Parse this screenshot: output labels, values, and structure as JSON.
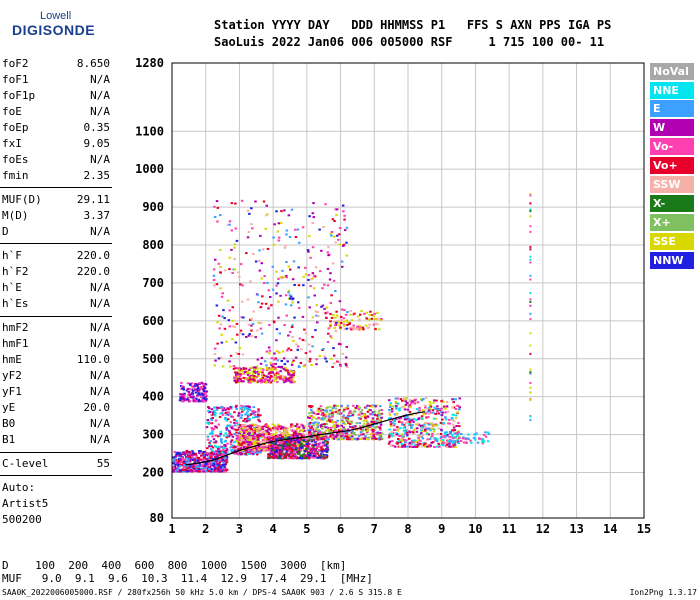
{
  "logo": {
    "line1": "Lowell",
    "line2": "DIGISONDE"
  },
  "header": {
    "row1": "Station YYYY DAY   DDD HHMMSS P1   FFS S AXN PPS IGA PS",
    "row2": "SaoLuis 2022 Jan06 006 005000 RSF     1 715 100 00- 11"
  },
  "params": [
    {
      "name": "foF2",
      "value": "8.650"
    },
    {
      "name": "foF1",
      "value": "N/A"
    },
    {
      "name": "foF1p",
      "value": "N/A"
    },
    {
      "name": "foE",
      "value": "N/A"
    },
    {
      "name": "foEp",
      "value": "0.35"
    },
    {
      "name": "fxI",
      "value": "9.05"
    },
    {
      "name": "foEs",
      "value": "N/A"
    },
    {
      "name": "fmin",
      "value": "2.35"
    },
    {
      "name": "MUF(D)",
      "value": "29.11"
    },
    {
      "name": "M(D)",
      "value": "3.37"
    },
    {
      "name": "D",
      "value": "N/A"
    },
    {
      "name": "h`F",
      "value": "220.0"
    },
    {
      "name": "h`F2",
      "value": "220.0"
    },
    {
      "name": "h`E",
      "value": "N/A"
    },
    {
      "name": "h`Es",
      "value": "N/A"
    },
    {
      "name": "hmF2",
      "value": "N/A"
    },
    {
      "name": "hmF1",
      "value": "N/A"
    },
    {
      "name": "hmE",
      "value": "110.0"
    },
    {
      "name": "yF2",
      "value": "N/A"
    },
    {
      "name": "yF1",
      "value": "N/A"
    },
    {
      "name": "yE",
      "value": "20.0"
    },
    {
      "name": "B0",
      "value": "N/A"
    },
    {
      "name": "B1",
      "value": "N/A"
    },
    {
      "name": "C-level",
      "value": "55"
    }
  ],
  "auto": [
    "Auto:",
    "Artist5",
    "500200"
  ],
  "legend": [
    {
      "label": "NoVal",
      "color": "#a8a8a8"
    },
    {
      "label": "NNE",
      "color": "#00e5ee"
    },
    {
      "label": "E",
      "color": "#3ca0ff"
    },
    {
      "label": "W",
      "color": "#b000b0"
    },
    {
      "label": "Vo-",
      "color": "#ff40b0"
    },
    {
      "label": "Vo+",
      "color": "#e8002a"
    },
    {
      "label": "SSW",
      "color": "#f5b0a8"
    },
    {
      "label": "X-",
      "color": "#1a7a1a"
    },
    {
      "label": "X+",
      "color": "#7fc060"
    },
    {
      "label": "SSE",
      "color": "#d8d800"
    },
    {
      "label": "NNW",
      "color": "#2020e0"
    }
  ],
  "footer": {
    "d_row": "D    100  200  400  600  800  1000  1500  3000  [km]",
    "muf_row": "MUF   9.0  9.1  9.6  10.3  11.4  12.9  17.4  29.1  [MHz]",
    "file": "SAA0K_2022006005000.RSF / 280fx256h 50 kHz 5.0 km / DPS-4 SAA0K 903 / 2.6 S 315.8 E",
    "version": "Ion2Png 1.3.17"
  },
  "chart_data": {
    "type": "scatter",
    "xlim": [
      1,
      15
    ],
    "ylim": [
      80,
      1280
    ],
    "x_ticks": [
      "1",
      "2",
      "3",
      "4",
      "5",
      "6",
      "7",
      "8",
      "9",
      "10",
      "11",
      "12",
      "13",
      "14",
      "15"
    ],
    "y_ticks": [
      "80",
      "200",
      "300",
      "400",
      "500",
      "600",
      "700",
      "800",
      "900",
      "1000",
      "1100",
      "1280"
    ],
    "grid": true,
    "profile_trace": {
      "x": [
        1.4,
        1.8,
        2.2,
        2.6,
        3.0,
        3.4,
        3.8,
        4.2,
        4.6,
        5.0,
        5.4,
        5.8,
        6.2,
        6.6,
        7.0,
        7.4,
        7.8,
        8.2,
        8.5
      ],
      "y": [
        220,
        225,
        232,
        245,
        258,
        268,
        278,
        285,
        290,
        294,
        300,
        305,
        310,
        318,
        328,
        338,
        348,
        356,
        360
      ]
    },
    "clusters": [
      {
        "x": [
          1.0,
          2.6
        ],
        "y": [
          205,
          260
        ],
        "n": 520,
        "colors": [
          "#b000b0",
          "#2020e0",
          "#ff40b0",
          "#e8002a",
          "#3ca0ff"
        ]
      },
      {
        "x": [
          1.2,
          2.0
        ],
        "y": [
          390,
          440
        ],
        "n": 140,
        "colors": [
          "#b000b0",
          "#2020e0",
          "#ff40b0"
        ]
      },
      {
        "x": [
          2.0,
          3.6
        ],
        "y": [
          250,
          380
        ],
        "n": 380,
        "colors": [
          "#b000b0",
          "#ff40b0",
          "#3ca0ff",
          "#e8002a",
          "#00e5ee"
        ]
      },
      {
        "x": [
          2.9,
          4.9
        ],
        "y": [
          260,
          330
        ],
        "n": 700,
        "colors": [
          "#e8002a",
          "#ff40b0",
          "#f5b0a8",
          "#b000b0",
          "#d8d800"
        ]
      },
      {
        "x": [
          2.8,
          4.6
        ],
        "y": [
          440,
          480
        ],
        "n": 260,
        "colors": [
          "#b000b0",
          "#ff40b0",
          "#e8002a",
          "#d8d800"
        ]
      },
      {
        "x": [
          3.8,
          5.6
        ],
        "y": [
          240,
          300
        ],
        "n": 520,
        "colors": [
          "#b000b0",
          "#2020e0",
          "#e8002a",
          "#ff40b0",
          "#1a7a1a"
        ]
      },
      {
        "x": [
          5.0,
          7.2
        ],
        "y": [
          290,
          380
        ],
        "n": 520,
        "colors": [
          "#ff40b0",
          "#e8002a",
          "#b000b0",
          "#3ca0ff",
          "#d8d800",
          "#7fc060"
        ]
      },
      {
        "x": [
          5.5,
          7.2
        ],
        "y": [
          580,
          630
        ],
        "n": 90,
        "colors": [
          "#e8002a",
          "#ff40b0",
          "#d8d800",
          "#f5b0a8"
        ]
      },
      {
        "x": [
          7.4,
          9.5
        ],
        "y": [
          270,
          400
        ],
        "n": 480,
        "colors": [
          "#3ca0ff",
          "#00e5ee",
          "#e8002a",
          "#f5b0a8",
          "#d8d800",
          "#b000b0",
          "#ff40b0"
        ]
      },
      {
        "x": [
          9.0,
          10.4
        ],
        "y": [
          280,
          310
        ],
        "n": 60,
        "colors": [
          "#3ca0ff",
          "#00e5ee",
          "#ff40b0"
        ]
      },
      {
        "x": [
          2.2,
          6.2
        ],
        "y": [
          480,
          920
        ],
        "n": 420,
        "colors": [
          "#b000b0",
          "#ff40b0",
          "#e8002a",
          "#2020e0",
          "#f5b0a8",
          "#d8d800",
          "#3ca0ff"
        ]
      }
    ]
  }
}
